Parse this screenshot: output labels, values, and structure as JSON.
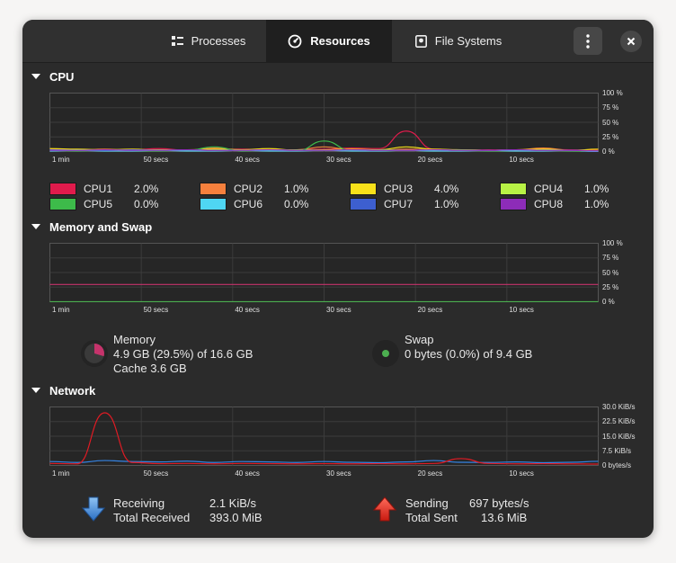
{
  "tabs": [
    {
      "label": "Processes",
      "icon": "list-icon",
      "active": false
    },
    {
      "label": "Resources",
      "icon": "gauge-icon",
      "active": true
    },
    {
      "label": "File Systems",
      "icon": "disk-icon",
      "active": false
    }
  ],
  "sections": {
    "cpu": {
      "title": "CPU"
    },
    "memory": {
      "title": "Memory and Swap"
    },
    "network": {
      "title": "Network"
    }
  },
  "percent_ticks": [
    "100 %",
    "75 %",
    "50 %",
    "25 %",
    "0 %"
  ],
  "network_ticks": [
    "30.0 KiB/s",
    "22.5 KiB/s",
    "15.0 KiB/s",
    "7.5 KiB/s",
    "0 bytes/s"
  ],
  "time_ticks": [
    "1 min",
    "50 secs",
    "40 secs",
    "30 secs",
    "20 secs",
    "10 secs"
  ],
  "cpu_legend": [
    {
      "name": "CPU1",
      "value": "2.0%",
      "color": "#e01b4c"
    },
    {
      "name": "CPU2",
      "value": "1.0%",
      "color": "#f6803d"
    },
    {
      "name": "CPU3",
      "value": "4.0%",
      "color": "#f8e11a"
    },
    {
      "name": "CPU4",
      "value": "1.0%",
      "color": "#b8f245"
    },
    {
      "name": "CPU5",
      "value": "0.0%",
      "color": "#3dbb4a"
    },
    {
      "name": "CPU6",
      "value": "0.0%",
      "color": "#4fd6f3"
    },
    {
      "name": "CPU7",
      "value": "1.0%",
      "color": "#3d5fd0"
    },
    {
      "name": "CPU8",
      "value": "1.0%",
      "color": "#8d2cb8"
    }
  ],
  "memory": {
    "label": "Memory",
    "value": "4.9 GB (29.5%) of 16.6 GB",
    "cache": "Cache 3.6 GB",
    "color": "#c5336b",
    "fraction": 0.295
  },
  "swap": {
    "label": "Swap",
    "value": "0 bytes (0.0%) of 9.4 GB",
    "color": "#4caf50",
    "fraction": 0.0
  },
  "network": {
    "receiving_label": "Receiving",
    "receiving_value": "2.1 KiB/s",
    "total_received_label": "Total Received",
    "total_received_value": "393.0 MiB",
    "sending_label": "Sending",
    "sending_value": "697 bytes/s",
    "total_sent_label": "Total Sent",
    "total_sent_value": "13.6 MiB",
    "receive_color": "#3584e4",
    "send_color": "#e01b24"
  },
  "chart_data": [
    {
      "type": "line",
      "xlabel": "",
      "ylabel": "",
      "x_ticks": [
        "1 min",
        "50 secs",
        "40 secs",
        "30 secs",
        "20 secs",
        "10 secs"
      ],
      "ylim": [
        0,
        100
      ],
      "x": [
        60,
        57,
        54,
        51,
        48,
        45,
        42,
        39,
        36,
        33,
        30,
        27,
        24,
        21,
        18,
        15,
        12,
        9,
        6,
        3,
        0
      ],
      "series": [
        {
          "name": "CPU1",
          "values": [
            4,
            3,
            2,
            3,
            5,
            2,
            3,
            4,
            2,
            3,
            4,
            6,
            5,
            35,
            4,
            2,
            3,
            2,
            4,
            3,
            2
          ]
        },
        {
          "name": "CPU2",
          "values": [
            3,
            2,
            4,
            2,
            3,
            2,
            6,
            3,
            2,
            3,
            8,
            3,
            2,
            4,
            3,
            2,
            2,
            3,
            6,
            2,
            1
          ]
        },
        {
          "name": "CPU3",
          "values": [
            5,
            4,
            3,
            4,
            2,
            3,
            4,
            3,
            5,
            2,
            3,
            4,
            3,
            8,
            4,
            3,
            2,
            3,
            4,
            2,
            4
          ]
        },
        {
          "name": "CPU4",
          "values": [
            2,
            3,
            2,
            2,
            3,
            2,
            3,
            2,
            2,
            3,
            2,
            2,
            3,
            2,
            2,
            3,
            2,
            2,
            3,
            2,
            1
          ]
        },
        {
          "name": "CPU5",
          "values": [
            2,
            1,
            2,
            1,
            1,
            2,
            8,
            1,
            2,
            1,
            18,
            2,
            1,
            2,
            1,
            2,
            1,
            1,
            2,
            1,
            0
          ]
        },
        {
          "name": "CPU6",
          "values": [
            1,
            2,
            1,
            1,
            2,
            1,
            1,
            2,
            1,
            1,
            2,
            1,
            1,
            2,
            1,
            1,
            2,
            1,
            1,
            2,
            0
          ]
        },
        {
          "name": "CPU7",
          "values": [
            3,
            2,
            2,
            3,
            2,
            3,
            2,
            2,
            3,
            2,
            2,
            3,
            2,
            2,
            3,
            2,
            2,
            3,
            2,
            2,
            1
          ]
        },
        {
          "name": "CPU8",
          "values": [
            2,
            2,
            3,
            2,
            2,
            3,
            2,
            2,
            3,
            2,
            2,
            3,
            2,
            2,
            3,
            2,
            2,
            3,
            2,
            2,
            1
          ]
        }
      ]
    },
    {
      "type": "line",
      "xlabel": "",
      "ylabel": "",
      "x_ticks": [
        "1 min",
        "50 secs",
        "40 secs",
        "30 secs",
        "20 secs",
        "10 secs"
      ],
      "ylim": [
        0,
        100
      ],
      "x": [
        60,
        0
      ],
      "series": [
        {
          "name": "Memory",
          "values": [
            29.5,
            29.5
          ]
        },
        {
          "name": "Swap",
          "values": [
            0,
            0
          ]
        }
      ]
    },
    {
      "type": "line",
      "xlabel": "",
      "ylabel": "",
      "x_ticks": [
        "1 min",
        "50 secs",
        "40 secs",
        "30 secs",
        "20 secs",
        "10 secs"
      ],
      "ylim": [
        0,
        30
      ],
      "y_unit": "KiB/s",
      "x": [
        60,
        57,
        54,
        51,
        48,
        45,
        42,
        39,
        36,
        33,
        30,
        27,
        24,
        21,
        18,
        15,
        12,
        9,
        6,
        3,
        0
      ],
      "series": [
        {
          "name": "Receiving",
          "values": [
            2,
            1.5,
            2.5,
            2,
            1.8,
            2.2,
            1.5,
            2,
            1.8,
            1.5,
            2,
            1.6,
            1.4,
            1.8,
            2.5,
            1.6,
            1.5,
            1.8,
            1.4,
            1.6,
            2.1
          ]
        },
        {
          "name": "Sending",
          "values": [
            1,
            0.8,
            27,
            1.5,
            0.9,
            1,
            0.8,
            1,
            0.9,
            0.8,
            0.9,
            0.8,
            0.9,
            0.8,
            1,
            3.5,
            1,
            0.8,
            0.9,
            0.8,
            0.7
          ]
        }
      ]
    }
  ]
}
